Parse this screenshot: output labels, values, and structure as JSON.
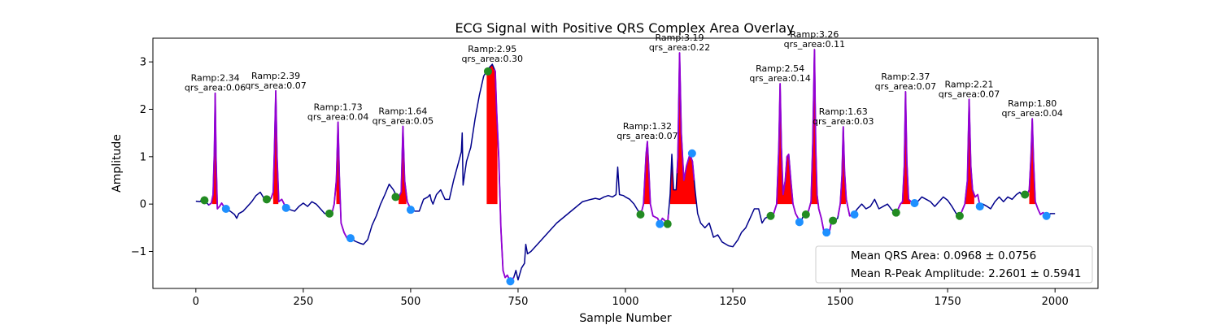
{
  "colors": {
    "ecg_line": "#00008b",
    "qrs_line": "#9400d3",
    "qrs_fill": "#ff0000",
    "onset_marker": "#228b22",
    "offset_marker": "#1e90ff",
    "axes": "#000000",
    "legend_border": "#cccccc"
  },
  "chart_data": {
    "type": "line",
    "title": "ECG Signal with Positive QRS Complex Area Overlay",
    "xlabel": "Sample Number",
    "ylabel": "Amplitude",
    "xlim": [
      -100,
      2100
    ],
    "ylim": [
      -1.78,
      3.5
    ],
    "xticks": [
      0,
      250,
      500,
      750,
      1000,
      1250,
      1500,
      1750,
      2000
    ],
    "xtick_labels": [
      "0",
      "250",
      "500",
      "750",
      "1000",
      "1250",
      "1500",
      "1750",
      "2000"
    ],
    "yticks": [
      -1,
      0,
      1,
      2,
      3
    ],
    "ytick_labels": [
      "−1",
      "0",
      "1",
      "2",
      "3"
    ],
    "ecg_signal": {
      "name": "ECG",
      "points": [
        [
          0,
          0.06
        ],
        [
          10,
          0.05
        ],
        [
          15,
          0.12
        ],
        [
          20,
          0.08
        ],
        [
          30,
          -0.02
        ],
        [
          36,
          0.02
        ],
        [
          40,
          0.2
        ],
        [
          43,
          1.1
        ],
        [
          45,
          2.34
        ],
        [
          47,
          1.0
        ],
        [
          50,
          -0.1
        ],
        [
          55,
          -0.05
        ],
        [
          60,
          0.02
        ],
        [
          65,
          -0.05
        ],
        [
          70,
          -0.12
        ],
        [
          80,
          -0.15
        ],
        [
          90,
          -0.22
        ],
        [
          95,
          -0.3
        ],
        [
          100,
          -0.2
        ],
        [
          110,
          -0.15
        ],
        [
          120,
          -0.05
        ],
        [
          130,
          0.05
        ],
        [
          140,
          0.18
        ],
        [
          150,
          0.25
        ],
        [
          160,
          0.1
        ],
        [
          170,
          0.08
        ],
        [
          175,
          0.12
        ],
        [
          180,
          0.25
        ],
        [
          183,
          1.2
        ],
        [
          186,
          2.39
        ],
        [
          189,
          1.0
        ],
        [
          193,
          0.05
        ],
        [
          200,
          0.1
        ],
        [
          210,
          -0.08
        ],
        [
          220,
          -0.12
        ],
        [
          230,
          -0.15
        ],
        [
          240,
          -0.05
        ],
        [
          250,
          0.02
        ],
        [
          260,
          -0.05
        ],
        [
          270,
          0.05
        ],
        [
          280,
          0.0
        ],
        [
          290,
          -0.1
        ],
        [
          300,
          -0.2
        ],
        [
          310,
          -0.2
        ],
        [
          318,
          -0.15
        ],
        [
          322,
          0.0
        ],
        [
          327,
          0.5
        ],
        [
          331,
          1.73
        ],
        [
          334,
          0.6
        ],
        [
          338,
          -0.4
        ],
        [
          345,
          -0.6
        ],
        [
          352,
          -0.72
        ],
        [
          360,
          -0.72
        ],
        [
          370,
          -0.78
        ],
        [
          380,
          -0.82
        ],
        [
          390,
          -0.85
        ],
        [
          400,
          -0.75
        ],
        [
          410,
          -0.45
        ],
        [
          420,
          -0.25
        ],
        [
          430,
          0.0
        ],
        [
          440,
          0.2
        ],
        [
          450,
          0.42
        ],
        [
          460,
          0.3
        ],
        [
          470,
          0.12
        ],
        [
          478,
          0.25
        ],
        [
          482,
          1.64
        ],
        [
          486,
          0.5
        ],
        [
          492,
          0.05
        ],
        [
          500,
          -0.1
        ],
        [
          510,
          -0.15
        ],
        [
          520,
          -0.15
        ],
        [
          530,
          0.1
        ],
        [
          540,
          0.15
        ],
        [
          545,
          0.2
        ],
        [
          548,
          0.08
        ],
        [
          552,
          0.0
        ],
        [
          560,
          0.2
        ],
        [
          570,
          0.3
        ],
        [
          580,
          0.1
        ],
        [
          590,
          0.1
        ],
        [
          600,
          0.5
        ],
        [
          612,
          0.9
        ],
        [
          618,
          1.1
        ],
        [
          620,
          1.5
        ],
        [
          622,
          0.4
        ],
        [
          630,
          0.9
        ],
        [
          640,
          1.2
        ],
        [
          650,
          1.8
        ],
        [
          660,
          2.3
        ],
        [
          670,
          2.7
        ],
        [
          680,
          2.85
        ],
        [
          690,
          2.95
        ],
        [
          697,
          2.8
        ],
        [
          700,
          2.0
        ],
        [
          705,
          1.0
        ],
        [
          710,
          -0.5
        ],
        [
          715,
          -1.4
        ],
        [
          720,
          -1.55
        ],
        [
          725,
          -1.5
        ],
        [
          732,
          -1.63
        ],
        [
          740,
          -1.55
        ],
        [
          745,
          -1.4
        ],
        [
          750,
          -1.6
        ],
        [
          758,
          -1.35
        ],
        [
          765,
          -1.25
        ],
        [
          768,
          -0.85
        ],
        [
          772,
          -1.05
        ],
        [
          780,
          -1.0
        ],
        [
          800,
          -0.8
        ],
        [
          820,
          -0.6
        ],
        [
          840,
          -0.4
        ],
        [
          860,
          -0.25
        ],
        [
          880,
          -0.1
        ],
        [
          900,
          0.05
        ],
        [
          920,
          0.1
        ],
        [
          930,
          0.12
        ],
        [
          940,
          0.1
        ],
        [
          950,
          0.15
        ],
        [
          960,
          0.18
        ],
        [
          970,
          0.15
        ],
        [
          978,
          0.2
        ],
        [
          982,
          0.78
        ],
        [
          986,
          0.2
        ],
        [
          995,
          0.18
        ],
        [
          1000,
          0.15
        ],
        [
          1010,
          0.1
        ],
        [
          1020,
          0.0
        ],
        [
          1030,
          -0.15
        ],
        [
          1036,
          -0.22
        ],
        [
          1042,
          0.0
        ],
        [
          1048,
          1.05
        ],
        [
          1051,
          1.32
        ],
        [
          1054,
          0.8
        ],
        [
          1058,
          0.0
        ],
        [
          1064,
          -0.25
        ],
        [
          1075,
          -0.3
        ],
        [
          1080,
          -0.42
        ],
        [
          1086,
          -0.3
        ],
        [
          1092,
          -0.35
        ],
        [
          1098,
          -0.42
        ],
        [
          1104,
          0.2
        ],
        [
          1108,
          1.05
        ],
        [
          1112,
          0.3
        ],
        [
          1118,
          0.3
        ],
        [
          1122,
          1.0
        ],
        [
          1126,
          3.19
        ],
        [
          1130,
          1.5
        ],
        [
          1136,
          0.5
        ],
        [
          1142,
          0.8
        ],
        [
          1150,
          1.05
        ],
        [
          1156,
          0.9
        ],
        [
          1162,
          0.3
        ],
        [
          1168,
          -0.2
        ],
        [
          1175,
          -0.4
        ],
        [
          1185,
          -0.5
        ],
        [
          1195,
          -0.4
        ],
        [
          1205,
          -0.7
        ],
        [
          1215,
          -0.65
        ],
        [
          1225,
          -0.8
        ],
        [
          1240,
          -0.88
        ],
        [
          1250,
          -0.9
        ],
        [
          1262,
          -0.75
        ],
        [
          1270,
          -0.6
        ],
        [
          1280,
          -0.5
        ],
        [
          1290,
          -0.3
        ],
        [
          1300,
          -0.1
        ],
        [
          1310,
          -0.1
        ],
        [
          1318,
          -0.4
        ],
        [
          1325,
          -0.3
        ],
        [
          1335,
          -0.25
        ],
        [
          1345,
          -0.2
        ],
        [
          1352,
          0.0
        ],
        [
          1357,
          1.2
        ],
        [
          1360,
          2.54
        ],
        [
          1363,
          1.2
        ],
        [
          1367,
          0.2
        ],
        [
          1372,
          0.5
        ],
        [
          1376,
          1.0
        ],
        [
          1380,
          1.05
        ],
        [
          1385,
          0.5
        ],
        [
          1390,
          0.0
        ],
        [
          1396,
          -0.2
        ],
        [
          1402,
          -0.3
        ],
        [
          1408,
          -0.38
        ],
        [
          1414,
          -0.25
        ],
        [
          1420,
          -0.2
        ],
        [
          1426,
          -0.15
        ],
        [
          1432,
          0.05
        ],
        [
          1436,
          1.3
        ],
        [
          1440,
          3.26
        ],
        [
          1443,
          1.2
        ],
        [
          1446,
          0.2
        ],
        [
          1450,
          -0.1
        ],
        [
          1456,
          -0.3
        ],
        [
          1462,
          -0.58
        ],
        [
          1468,
          -0.6
        ],
        [
          1474,
          -0.62
        ],
        [
          1480,
          -0.35
        ],
        [
          1486,
          -0.35
        ],
        [
          1494,
          -0.3
        ],
        [
          1500,
          0.0
        ],
        [
          1504,
          0.6
        ],
        [
          1507,
          1.63
        ],
        [
          1510,
          0.7
        ],
        [
          1514,
          0.1
        ],
        [
          1522,
          -0.25
        ],
        [
          1530,
          -0.22
        ],
        [
          1540,
          -0.1
        ],
        [
          1550,
          0.0
        ],
        [
          1560,
          -0.1
        ],
        [
          1570,
          -0.05
        ],
        [
          1580,
          0.1
        ],
        [
          1590,
          -0.1
        ],
        [
          1600,
          -0.05
        ],
        [
          1610,
          0.0
        ],
        [
          1620,
          -0.12
        ],
        [
          1630,
          -0.2
        ],
        [
          1640,
          0.0
        ],
        [
          1645,
          0.05
        ],
        [
          1649,
          0.8
        ],
        [
          1652,
          2.37
        ],
        [
          1655,
          0.9
        ],
        [
          1659,
          0.1
        ],
        [
          1665,
          0.05
        ],
        [
          1672,
          -0.02
        ],
        [
          1680,
          0.05
        ],
        [
          1690,
          0.15
        ],
        [
          1700,
          0.1
        ],
        [
          1710,
          0.05
        ],
        [
          1720,
          -0.05
        ],
        [
          1730,
          0.05
        ],
        [
          1740,
          0.15
        ],
        [
          1750,
          0.08
        ],
        [
          1760,
          -0.05
        ],
        [
          1770,
          -0.2
        ],
        [
          1780,
          -0.22
        ],
        [
          1790,
          0.0
        ],
        [
          1796,
          0.5
        ],
        [
          1800,
          2.21
        ],
        [
          1804,
          0.8
        ],
        [
          1808,
          0.3
        ],
        [
          1814,
          0.15
        ],
        [
          1820,
          0.2
        ],
        [
          1826,
          -0.08
        ],
        [
          1832,
          0.0
        ],
        [
          1842,
          -0.05
        ],
        [
          1850,
          -0.1
        ],
        [
          1860,
          0.05
        ],
        [
          1870,
          0.15
        ],
        [
          1880,
          0.05
        ],
        [
          1890,
          0.15
        ],
        [
          1900,
          0.1
        ],
        [
          1910,
          0.2
        ],
        [
          1918,
          0.25
        ],
        [
          1926,
          0.15
        ],
        [
          1935,
          0.2
        ],
        [
          1940,
          0.3
        ],
        [
          1944,
          1.0
        ],
        [
          1947,
          1.8
        ],
        [
          1950,
          0.9
        ],
        [
          1954,
          0.05
        ],
        [
          1960,
          -0.1
        ],
        [
          1966,
          -0.22
        ],
        [
          1972,
          -0.18
        ],
        [
          1980,
          -0.25
        ],
        [
          1990,
          -0.2
        ],
        [
          2000,
          -0.2
        ]
      ]
    },
    "qrs_segments": [
      {
        "start": 30,
        "end": 70
      },
      {
        "start": 165,
        "end": 210
      },
      {
        "start": 310,
        "end": 360
      },
      {
        "start": 465,
        "end": 500
      },
      {
        "start": 695,
        "end": 740
      },
      {
        "start": 1032,
        "end": 1100
      },
      {
        "start": 1120,
        "end": 1160
      },
      {
        "start": 1345,
        "end": 1410
      },
      {
        "start": 1420,
        "end": 1480
      },
      {
        "start": 1495,
        "end": 1535
      },
      {
        "start": 1630,
        "end": 1680
      },
      {
        "start": 1780,
        "end": 1830
      },
      {
        "start": 1930,
        "end": 1975
      }
    ],
    "qrs_fill_regions": [
      {
        "start": 38,
        "end": 52
      },
      {
        "start": 180,
        "end": 192
      },
      {
        "start": 327,
        "end": 336
      },
      {
        "start": 472,
        "end": 490
      },
      {
        "start": 677,
        "end": 702
      },
      {
        "start": 1036,
        "end": 1060
      },
      {
        "start": 1104,
        "end": 1165
      },
      {
        "start": 1352,
        "end": 1395
      },
      {
        "start": 1432,
        "end": 1448
      },
      {
        "start": 1500,
        "end": 1513
      },
      {
        "start": 1643,
        "end": 1663
      },
      {
        "start": 1788,
        "end": 1812
      },
      {
        "start": 1940,
        "end": 1954
      }
    ],
    "onset_markers": [
      [
        20,
        0.08
      ],
      [
        165,
        0.1
      ],
      [
        311,
        -0.2
      ],
      [
        465,
        0.15
      ],
      [
        680,
        2.8
      ],
      [
        1035,
        -0.22
      ],
      [
        1098,
        -0.42
      ],
      [
        1338,
        -0.25
      ],
      [
        1420,
        -0.22
      ],
      [
        1483,
        -0.35
      ],
      [
        1630,
        -0.18
      ],
      [
        1778,
        -0.25
      ],
      [
        1930,
        0.2
      ]
    ],
    "offset_markers": [
      [
        70,
        -0.1
      ],
      [
        210,
        -0.08
      ],
      [
        360,
        -0.72
      ],
      [
        500,
        -0.12
      ],
      [
        732,
        -1.63
      ],
      [
        1080,
        -0.42
      ],
      [
        1155,
        1.07
      ],
      [
        1405,
        -0.38
      ],
      [
        1468,
        -0.6
      ],
      [
        1533,
        -0.22
      ],
      [
        1673,
        0.02
      ],
      [
        1825,
        -0.05
      ],
      [
        1980,
        -0.25
      ]
    ],
    "annotations": [
      {
        "x": 45,
        "y": 2.34,
        "ramp": "Ramp:2.34",
        "area": "qrs_area:0.06"
      },
      {
        "x": 186,
        "y": 2.39,
        "ramp": "Ramp:2.39",
        "area": "qrs_area:0.07"
      },
      {
        "x": 331,
        "y": 1.73,
        "ramp": "Ramp:1.73",
        "area": "qrs_area:0.04"
      },
      {
        "x": 482,
        "y": 1.64,
        "ramp": "Ramp:1.64",
        "area": "qrs_area:0.05"
      },
      {
        "x": 690,
        "y": 2.95,
        "ramp": "Ramp:2.95",
        "area": "qrs_area:0.30"
      },
      {
        "x": 1051,
        "y": 1.32,
        "ramp": "Ramp:1.32",
        "area": "qrs_area:0.07"
      },
      {
        "x": 1126,
        "y": 3.19,
        "ramp": "Ramp:3.19",
        "area": "qrs_area:0.22"
      },
      {
        "x": 1360,
        "y": 2.54,
        "ramp": "Ramp:2.54",
        "area": "qrs_area:0.14"
      },
      {
        "x": 1440,
        "y": 3.26,
        "ramp": "Ramp:3.26",
        "area": "qrs_area:0.11"
      },
      {
        "x": 1507,
        "y": 1.63,
        "ramp": "Ramp:1.63",
        "area": "qrs_area:0.03"
      },
      {
        "x": 1652,
        "y": 2.37,
        "ramp": "Ramp:2.37",
        "area": "qrs_area:0.07"
      },
      {
        "x": 1800,
        "y": 2.21,
        "ramp": "Ramp:2.21",
        "area": "qrs_area:0.07"
      },
      {
        "x": 1947,
        "y": 1.8,
        "ramp": "Ramp:1.80",
        "area": "qrs_area:0.04"
      }
    ],
    "legend": {
      "position": "lower-right",
      "entries": [
        "Mean QRS Area: 0.0968 ± 0.0756",
        "Mean R-Peak Amplitude: 2.2601 ± 0.5941"
      ]
    }
  }
}
